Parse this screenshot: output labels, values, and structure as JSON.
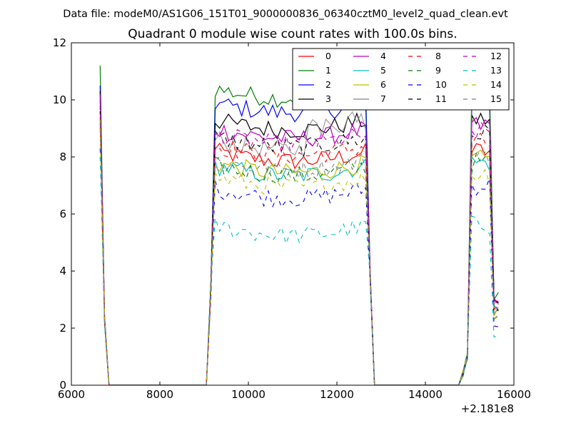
{
  "suptitle": "Data file: modeM0/AS1G06_151T01_9000000836_06340cztM0_level2_quad_clean.evt",
  "chart_data": {
    "type": "line",
    "title": "Quadrant 0 module wise count rates with 100.0s bins.",
    "xlabel": "",
    "ylabel": "",
    "x_offset_label": "+2.181e8",
    "xlim": [
      6000,
      16000
    ],
    "ylim": [
      0,
      12
    ],
    "xticks": [
      6000,
      8000,
      10000,
      12000,
      14000,
      16000
    ],
    "yticks": [
      0,
      2,
      4,
      6,
      8,
      10,
      12
    ],
    "grid": false,
    "legend": {
      "position": "top-right",
      "columns": 4
    },
    "x": [
      6650,
      6750,
      6850,
      6950,
      7050,
      7150,
      7250,
      7350,
      7450,
      7550,
      7650,
      7750,
      7850,
      7950,
      8050,
      8150,
      8250,
      8350,
      8450,
      8550,
      8650,
      8750,
      8850,
      8950,
      9050,
      9150,
      9250,
      9350,
      9450,
      9550,
      9650,
      9750,
      9850,
      9950,
      10050,
      10150,
      10250,
      10350,
      10450,
      10550,
      10650,
      10750,
      10850,
      10950,
      11050,
      11150,
      11250,
      11350,
      11450,
      11550,
      11650,
      11750,
      11850,
      11950,
      12050,
      12150,
      12250,
      12350,
      12450,
      12550,
      12650,
      12750,
      12850,
      12950,
      13050,
      13150,
      13250,
      13350,
      13450,
      13550,
      13650,
      13750,
      13850,
      13950,
      14050,
      14150,
      14250,
      14350,
      14450,
      14550,
      14650,
      14750,
      14850,
      14950,
      15050,
      15150,
      15250,
      15350,
      15450,
      15550,
      15650
    ],
    "series": [
      {
        "name": "0",
        "color": "#ff0000",
        "dash": false,
        "levels": [
          10.0,
          8.2,
          8.2,
          9.0
        ]
      },
      {
        "name": "1",
        "color": "#008000",
        "dash": false,
        "levels": [
          11.2,
          10.4,
          10.5,
          10.2
        ]
      },
      {
        "name": "2",
        "color": "#0000ff",
        "dash": false,
        "levels": [
          10.5,
          9.9,
          9.9,
          9.6
        ]
      },
      {
        "name": "3",
        "color": "#000000",
        "dash": false,
        "levels": [
          10.3,
          9.3,
          9.3,
          9.4
        ]
      },
      {
        "name": "4",
        "color": "#bf00bf",
        "dash": false,
        "levels": [
          10.2,
          9.0,
          9.1,
          9.5
        ]
      },
      {
        "name": "5",
        "color": "#00bfbf",
        "dash": false,
        "levels": [
          9.2,
          7.7,
          7.8,
          8.5
        ]
      },
      {
        "name": "6",
        "color": "#bfbf00",
        "dash": false,
        "levels": [
          9.3,
          7.8,
          7.9,
          8.4
        ]
      },
      {
        "name": "7",
        "color": "#808080",
        "dash": false,
        "levels": [
          9.8,
          8.6,
          8.7,
          9.0
        ],
        "hot": true
      },
      {
        "name": "8",
        "color": "#ff0000",
        "dash": true,
        "levels": [
          9.4,
          8.4,
          8.5,
          8.7
        ]
      },
      {
        "name": "9",
        "color": "#008000",
        "dash": true,
        "levels": [
          9.0,
          7.7,
          7.8,
          8.1
        ]
      },
      {
        "name": "10",
        "color": "#0000ff",
        "dash": true,
        "levels": [
          8.3,
          6.9,
          7.0,
          7.0
        ]
      },
      {
        "name": "11",
        "color": "#000000",
        "dash": true,
        "levels": [
          9.6,
          8.7,
          8.8,
          9.1
        ]
      },
      {
        "name": "12",
        "color": "#bf00bf",
        "dash": true,
        "levels": [
          9.8,
          8.8,
          8.9,
          9.2
        ]
      },
      {
        "name": "13",
        "color": "#00bfbf",
        "dash": true,
        "levels": [
          8.0,
          5.6,
          5.6,
          5.9
        ]
      },
      {
        "name": "14",
        "color": "#bfbf00",
        "dash": true,
        "levels": [
          9.3,
          7.3,
          7.4,
          7.8
        ]
      },
      {
        "name": "15",
        "color": "#808080",
        "dash": true,
        "levels": [
          9.2,
          7.9,
          8.0,
          8.2
        ]
      }
    ]
  }
}
